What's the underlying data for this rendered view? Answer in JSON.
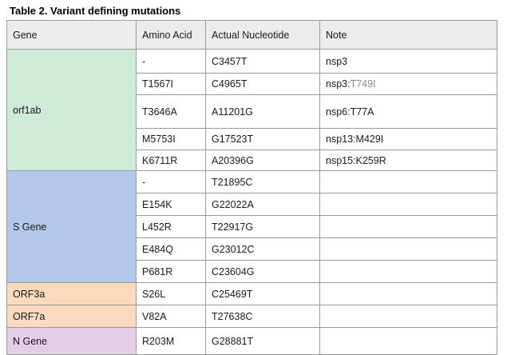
{
  "caption": "Table 2. Variant defining mutations",
  "headers": [
    "Gene",
    "Amino Acid",
    "Actual Nucleotide",
    "Note"
  ],
  "gene_colors": {
    "orf1ab": "#cdebd9",
    "s_gene": "#b1c8eb",
    "orf3a": "#fbd9bd",
    "orf7a": "#fbd9bd",
    "n_gene": "#e4cde7"
  },
  "groups": [
    {
      "gene": "orf1ab",
      "color_key": "orf1ab",
      "rows": [
        {
          "aa": "-",
          "nt": "C3457T",
          "note": "nsp3",
          "note_extra": "",
          "h": 30
        },
        {
          "aa": "T1567I",
          "nt": "C4965T",
          "note": "nsp3:",
          "note_extra": "T749I",
          "h": 27
        },
        {
          "aa": "T3646A",
          "nt": "A11201G",
          "note": "nsp6:T77A",
          "note_extra": "",
          "h": 42
        },
        {
          "aa": "M5753I",
          "nt": "G17523T",
          "note": "nsp13:M429I",
          "note_extra": "",
          "h": 27
        },
        {
          "aa": "K6711R",
          "nt": "A20396G",
          "note": "nsp15:K259R",
          "note_extra": "",
          "h": 26
        }
      ]
    },
    {
      "gene": "S Gene",
      "color_key": "s_gene",
      "rows": [
        {
          "aa": "-",
          "nt": "T21895C",
          "note": "",
          "note_extra": "",
          "h": 28
        },
        {
          "aa": "E154K",
          "nt": "G22022A",
          "note": "",
          "note_extra": "",
          "h": 28
        },
        {
          "aa": "L452R",
          "nt": "T22917G",
          "note": "",
          "note_extra": "",
          "h": 28
        },
        {
          "aa": "E484Q",
          "nt": "G23012C",
          "note": "",
          "note_extra": "",
          "h": 28
        },
        {
          "aa": "P681R",
          "nt": "C23604G",
          "note": "",
          "note_extra": "",
          "h": 28
        }
      ]
    },
    {
      "gene": "ORF3a",
      "color_key": "orf3a",
      "rows": [
        {
          "aa": "S26L",
          "nt": "C25469T",
          "note": "",
          "note_extra": "",
          "h": 28
        }
      ]
    },
    {
      "gene": "ORF7a",
      "color_key": "orf7a",
      "rows": [
        {
          "aa": "V82A",
          "nt": "T27638C",
          "note": "",
          "note_extra": "",
          "h": 28
        }
      ]
    },
    {
      "gene": "N Gene",
      "color_key": "n_gene",
      "rows": [
        {
          "aa": "R203M",
          "nt": "G28881T",
          "note": "",
          "note_extra": "",
          "h": 34
        }
      ]
    }
  ]
}
